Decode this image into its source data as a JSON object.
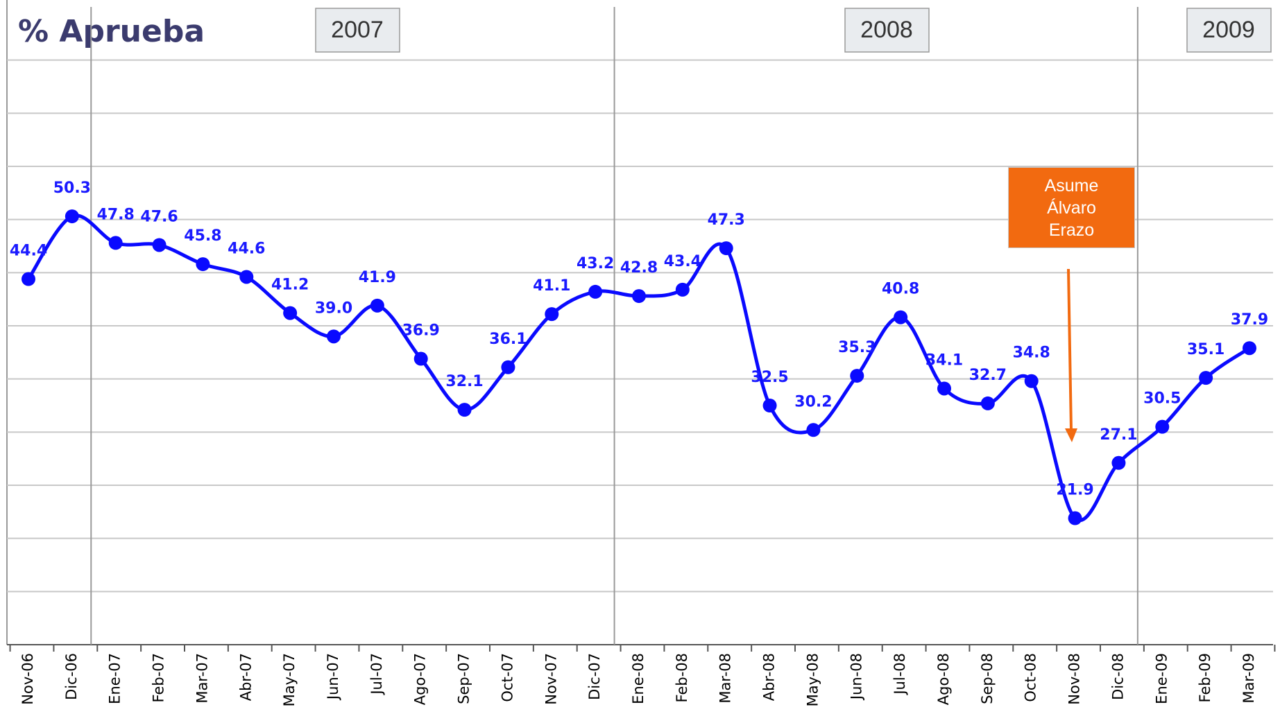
{
  "chart_data": {
    "type": "line",
    "title": "% Aprueba",
    "categories": [
      "Nov-06",
      "Dic-06",
      "Ene-07",
      "Feb-07",
      "Mar-07",
      "Abr-07",
      "May-07",
      "Jun-07",
      "Jul-07",
      "Ago-07",
      "Sep-07",
      "Oct-07",
      "Nov-07",
      "Dic-07",
      "Ene-08",
      "Feb-08",
      "Mar-08",
      "Abr-08",
      "May-08",
      "Jun-08",
      "Jul-08",
      "Ago-08",
      "Sep-08",
      "Oct-08",
      "Nov-08",
      "Dic-08",
      "Ene-09",
      "Feb-09",
      "Mar-09"
    ],
    "values": [
      44.4,
      50.3,
      47.8,
      47.6,
      45.8,
      44.6,
      41.2,
      39.0,
      41.9,
      36.9,
      32.1,
      36.1,
      41.1,
      43.2,
      42.8,
      43.4,
      47.3,
      32.5,
      30.2,
      35.3,
      40.8,
      34.1,
      32.7,
      34.8,
      21.9,
      27.1,
      30.5,
      35.1,
      37.9
    ],
    "value_labels": [
      "44.4",
      "50.3",
      "47.8",
      "47.6",
      "45.8",
      "44.6",
      "41.2",
      "39.0",
      "41.9",
      "36.9",
      "32.1",
      "36.1",
      "41.1",
      "43.2",
      "42.8",
      "43.4",
      "47.3",
      "32.5",
      "30.2",
      "35.3",
      "40.8",
      "34.1",
      "32.7",
      "34.8",
      "21.9",
      "27.1",
      "30.5",
      "35.1",
      "37.9"
    ],
    "color": "#0a0aff",
    "ylim": [
      10,
      70
    ],
    "yticks": [
      15,
      20,
      25,
      30,
      35,
      40,
      45,
      50,
      55,
      60,
      65
    ],
    "grid": true,
    "year_labels": [
      "2007",
      "2008",
      "2009"
    ],
    "annotation": "Asume Álvaro Erazo"
  }
}
